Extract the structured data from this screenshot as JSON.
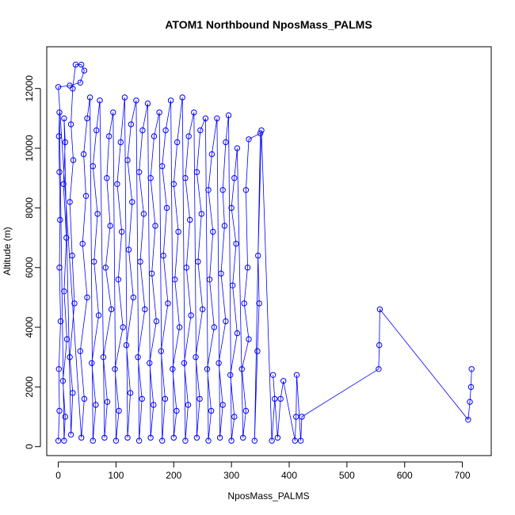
{
  "chart_data": {
    "type": "scatter",
    "title": "ATOM1 Northbound NposMass_PALMS",
    "xlabel": "NposMass_PALMS",
    "ylabel": "Altitude (m)",
    "xlim": [
      -20,
      750
    ],
    "ylim": [
      -300,
      13400
    ],
    "xticks": [
      0,
      100,
      200,
      300,
      400,
      500,
      600,
      700
    ],
    "yticks": [
      0,
      2000,
      4000,
      6000,
      8000,
      10000,
      12000
    ],
    "grid": false,
    "legend": "none",
    "series_color": "#0000ff",
    "marker": "open-circle",
    "connected": true,
    "series": [
      {
        "points": [
          [
            0,
            200
          ],
          [
            2,
            1200
          ],
          [
            1,
            2600
          ],
          [
            4,
            4200
          ],
          [
            2,
            6000
          ],
          [
            3,
            7600
          ],
          [
            2,
            9200
          ],
          [
            1,
            10400
          ],
          [
            2,
            11200
          ],
          [
            10,
            200
          ],
          [
            12,
            1000
          ],
          [
            8,
            2200
          ],
          [
            15,
            3600
          ],
          [
            10,
            5200
          ],
          [
            14,
            7000
          ],
          [
            9,
            8800
          ],
          [
            12,
            10200
          ],
          [
            10,
            11000
          ],
          [
            22,
            400
          ],
          [
            25,
            1800
          ],
          [
            20,
            3000
          ],
          [
            28,
            4800
          ],
          [
            24,
            6400
          ],
          [
            20,
            8200
          ],
          [
            26,
            9600
          ],
          [
            22,
            10800
          ],
          [
            25,
            12000
          ],
          [
            30,
            12800
          ],
          [
            40,
            12800
          ],
          [
            45,
            12600
          ],
          [
            38,
            12200
          ],
          [
            20,
            12100
          ],
          [
            0,
            12050
          ],
          [
            40,
            300
          ],
          [
            45,
            1600
          ],
          [
            38,
            3200
          ],
          [
            50,
            5000
          ],
          [
            42,
            6800
          ],
          [
            48,
            8400
          ],
          [
            44,
            9800
          ],
          [
            50,
            11000
          ],
          [
            55,
            11700
          ],
          [
            60,
            200
          ],
          [
            65,
            1400
          ],
          [
            58,
            2800
          ],
          [
            70,
            4400
          ],
          [
            62,
            6200
          ],
          [
            68,
            7800
          ],
          [
            60,
            9400
          ],
          [
            66,
            10600
          ],
          [
            72,
            11600
          ],
          [
            80,
            300
          ],
          [
            85,
            1500
          ],
          [
            78,
            3000
          ],
          [
            92,
            4600
          ],
          [
            82,
            6000
          ],
          [
            90,
            7400
          ],
          [
            84,
            9000
          ],
          [
            88,
            10400
          ],
          [
            95,
            11200
          ],
          [
            100,
            200
          ],
          [
            105,
            1200
          ],
          [
            98,
            2600
          ],
          [
            112,
            4000
          ],
          [
            104,
            5600
          ],
          [
            110,
            7200
          ],
          [
            102,
            8800
          ],
          [
            108,
            10200
          ],
          [
            115,
            11700
          ],
          [
            120,
            300
          ],
          [
            125,
            1800
          ],
          [
            118,
            3400
          ],
          [
            130,
            5000
          ],
          [
            122,
            6600
          ],
          [
            128,
            8200
          ],
          [
            120,
            9600
          ],
          [
            126,
            10800
          ],
          [
            135,
            11600
          ],
          [
            140,
            200
          ],
          [
            145,
            1600
          ],
          [
            138,
            3000
          ],
          [
            150,
            4600
          ],
          [
            142,
            6200
          ],
          [
            148,
            7800
          ],
          [
            140,
            9200
          ],
          [
            146,
            10600
          ],
          [
            155,
            11500
          ],
          [
            160,
            300
          ],
          [
            165,
            1400
          ],
          [
            158,
            2800
          ],
          [
            170,
            4200
          ],
          [
            162,
            5800
          ],
          [
            168,
            7400
          ],
          [
            160,
            9000
          ],
          [
            166,
            10400
          ],
          [
            175,
            11200
          ],
          [
            180,
            200
          ],
          [
            185,
            1600
          ],
          [
            178,
            3200
          ],
          [
            190,
            4800
          ],
          [
            182,
            6400
          ],
          [
            188,
            8000
          ],
          [
            180,
            9400
          ],
          [
            186,
            10600
          ],
          [
            195,
            11600
          ],
          [
            200,
            300
          ],
          [
            205,
            1200
          ],
          [
            198,
            2600
          ],
          [
            210,
            4000
          ],
          [
            202,
            5600
          ],
          [
            208,
            7200
          ],
          [
            200,
            8800
          ],
          [
            206,
            10200
          ],
          [
            215,
            11700
          ],
          [
            220,
            200
          ],
          [
            225,
            1400
          ],
          [
            218,
            2800
          ],
          [
            230,
            4400
          ],
          [
            222,
            6000
          ],
          [
            228,
            7600
          ],
          [
            220,
            9000
          ],
          [
            226,
            10400
          ],
          [
            235,
            11200
          ],
          [
            240,
            300
          ],
          [
            245,
            1600
          ],
          [
            238,
            3000
          ],
          [
            250,
            4600
          ],
          [
            242,
            6200
          ],
          [
            248,
            7800
          ],
          [
            240,
            9200
          ],
          [
            246,
            10600
          ],
          [
            255,
            11000
          ],
          [
            260,
            200
          ],
          [
            265,
            1200
          ],
          [
            258,
            2600
          ],
          [
            270,
            4000
          ],
          [
            262,
            5600
          ],
          [
            268,
            7200
          ],
          [
            260,
            8600
          ],
          [
            266,
            9800
          ],
          [
            275,
            11000
          ],
          [
            280,
            300
          ],
          [
            285,
            1400
          ],
          [
            278,
            2800
          ],
          [
            290,
            4200
          ],
          [
            282,
            5800
          ],
          [
            288,
            7400
          ],
          [
            285,
            8600
          ],
          [
            290,
            10200
          ],
          [
            295,
            11100
          ],
          [
            300,
            200
          ],
          [
            305,
            1000
          ],
          [
            298,
            2400
          ],
          [
            310,
            3800
          ],
          [
            302,
            5400
          ],
          [
            308,
            6800
          ],
          [
            300,
            8000
          ],
          [
            305,
            9000
          ],
          [
            310,
            10000
          ],
          [
            320,
            300
          ],
          [
            325,
            1200
          ],
          [
            318,
            2600
          ],
          [
            330,
            3600
          ],
          [
            322,
            4800
          ],
          [
            328,
            6000
          ],
          [
            325,
            8600
          ],
          [
            330,
            10300
          ],
          [
            350,
            10500
          ],
          [
            340,
            200
          ],
          [
            345,
            3200
          ],
          [
            348,
            4800
          ],
          [
            346,
            6400
          ],
          [
            352,
            10600
          ],
          [
            370,
            200
          ],
          [
            375,
            1600
          ],
          [
            372,
            2400
          ],
          [
            380,
            300
          ],
          [
            385,
            1600
          ],
          [
            390,
            2200
          ],
          [
            410,
            200
          ],
          [
            412,
            1000
          ],
          [
            413,
            2400
          ],
          [
            420,
            200
          ],
          [
            422,
            1000
          ],
          [
            555,
            2600
          ],
          [
            556,
            3400
          ],
          [
            557,
            4600
          ],
          [
            710,
            900
          ],
          [
            713,
            1500
          ],
          [
            715,
            2000
          ],
          [
            716,
            2600
          ]
        ]
      }
    ]
  }
}
